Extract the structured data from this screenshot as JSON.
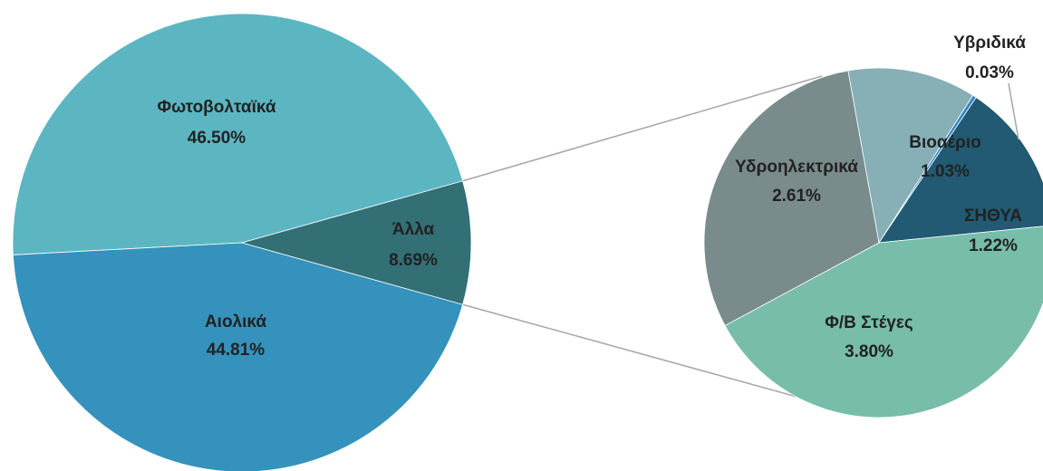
{
  "chart_data": {
    "type": "pie",
    "subtype": "pie-of-pie",
    "main_pie": {
      "slices": [
        {
          "label": "Φωτοβολταϊκά",
          "value": 46.5,
          "value_text": "46.50%",
          "color": "#5bb6c2"
        },
        {
          "label": "Αιολικά",
          "value": 44.81,
          "value_text": "44.81%",
          "color": "#3592bc"
        },
        {
          "label": "Άλλα",
          "value": 8.69,
          "value_text": "8.69%",
          "color": "#327076"
        }
      ]
    },
    "secondary_pie": {
      "source_slice": "Άλλα",
      "slices": [
        {
          "label": "Υβριδικά",
          "value": 0.03,
          "value_text": "0.03%",
          "color": "#2f86c8"
        },
        {
          "label": "ΣΗΘΥΑ",
          "value": 1.22,
          "value_text": "1.22%",
          "color": "#215a72"
        },
        {
          "label": "Φ/Β Στέγες",
          "value": 3.8,
          "value_text": "3.80%",
          "color": "#77bda9"
        },
        {
          "label": "Υδροηλεκτρικά",
          "value": 2.61,
          "value_text": "2.61%",
          "color": "#798b8b"
        },
        {
          "label": "Βιοαέριο",
          "value": 1.03,
          "value_text": "1.03%",
          "color": "#86afb6"
        }
      ]
    },
    "connector_color": "#a6a6a6"
  }
}
